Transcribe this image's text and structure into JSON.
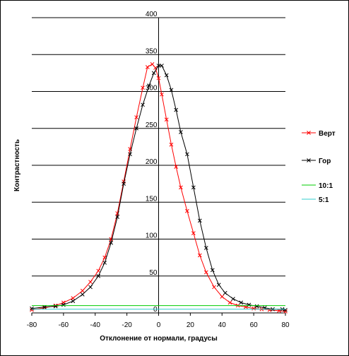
{
  "chart_data": {
    "type": "line",
    "title": "",
    "xlabel": "Отклонение от нормали, градусы",
    "ylabel": "Контрастность",
    "xlim": [
      -80,
      80
    ],
    "ylim": [
      0,
      400
    ],
    "x_ticks": [
      -80,
      -60,
      -40,
      -20,
      0,
      20,
      40,
      60,
      80
    ],
    "y_ticks": [
      0,
      50,
      100,
      150,
      200,
      250,
      300,
      350,
      400
    ],
    "grid": "horizontal",
    "legend_position": "right",
    "series": [
      {
        "name": "Верт",
        "color": "#ff0000",
        "marker": "x",
        "x": [
          -80,
          -72,
          -65,
          -60,
          -54,
          -48,
          -43,
          -38,
          -34,
          -30,
          -26,
          -22,
          -18,
          -14,
          -10,
          -7,
          -4,
          -2,
          0,
          2,
          5,
          8,
          11,
          14,
          18,
          22,
          26,
          30,
          35,
          40,
          45,
          50,
          55,
          60,
          65,
          70,
          76,
          80
        ],
        "values": [
          4,
          7,
          10,
          14,
          20,
          30,
          42,
          57,
          75,
          100,
          135,
          178,
          222,
          265,
          305,
          333,
          337,
          332,
          318,
          296,
          262,
          228,
          198,
          170,
          138,
          108,
          78,
          55,
          35,
          22,
          14,
          10,
          8,
          6,
          5,
          4,
          3,
          2
        ]
      },
      {
        "name": "Гор",
        "color": "#000000",
        "marker": "x",
        "x": [
          -80,
          -72,
          -65,
          -60,
          -54,
          -48,
          -43,
          -38,
          -34,
          -30,
          -26,
          -22,
          -18,
          -14,
          -10,
          -6,
          -3,
          0,
          2,
          5,
          8,
          11,
          14,
          18,
          22,
          26,
          30,
          34,
          38,
          42,
          47,
          52,
          57,
          62,
          67,
          72,
          78,
          80
        ],
        "values": [
          6,
          8,
          9,
          11,
          16,
          25,
          35,
          50,
          68,
          95,
          130,
          175,
          215,
          250,
          282,
          308,
          325,
          335,
          335,
          322,
          302,
          275,
          245,
          215,
          170,
          125,
          88,
          58,
          38,
          27,
          19,
          14,
          11,
          9,
          7,
          5,
          5,
          4
        ]
      },
      {
        "name": "10:1",
        "color": "#00cc00",
        "marker": "none",
        "x": [
          -80,
          80
        ],
        "values": [
          10,
          10
        ]
      },
      {
        "name": "5:1",
        "color": "#33cccc",
        "marker": "none",
        "x": [
          -80,
          80
        ],
        "values": [
          5,
          5
        ]
      }
    ]
  }
}
